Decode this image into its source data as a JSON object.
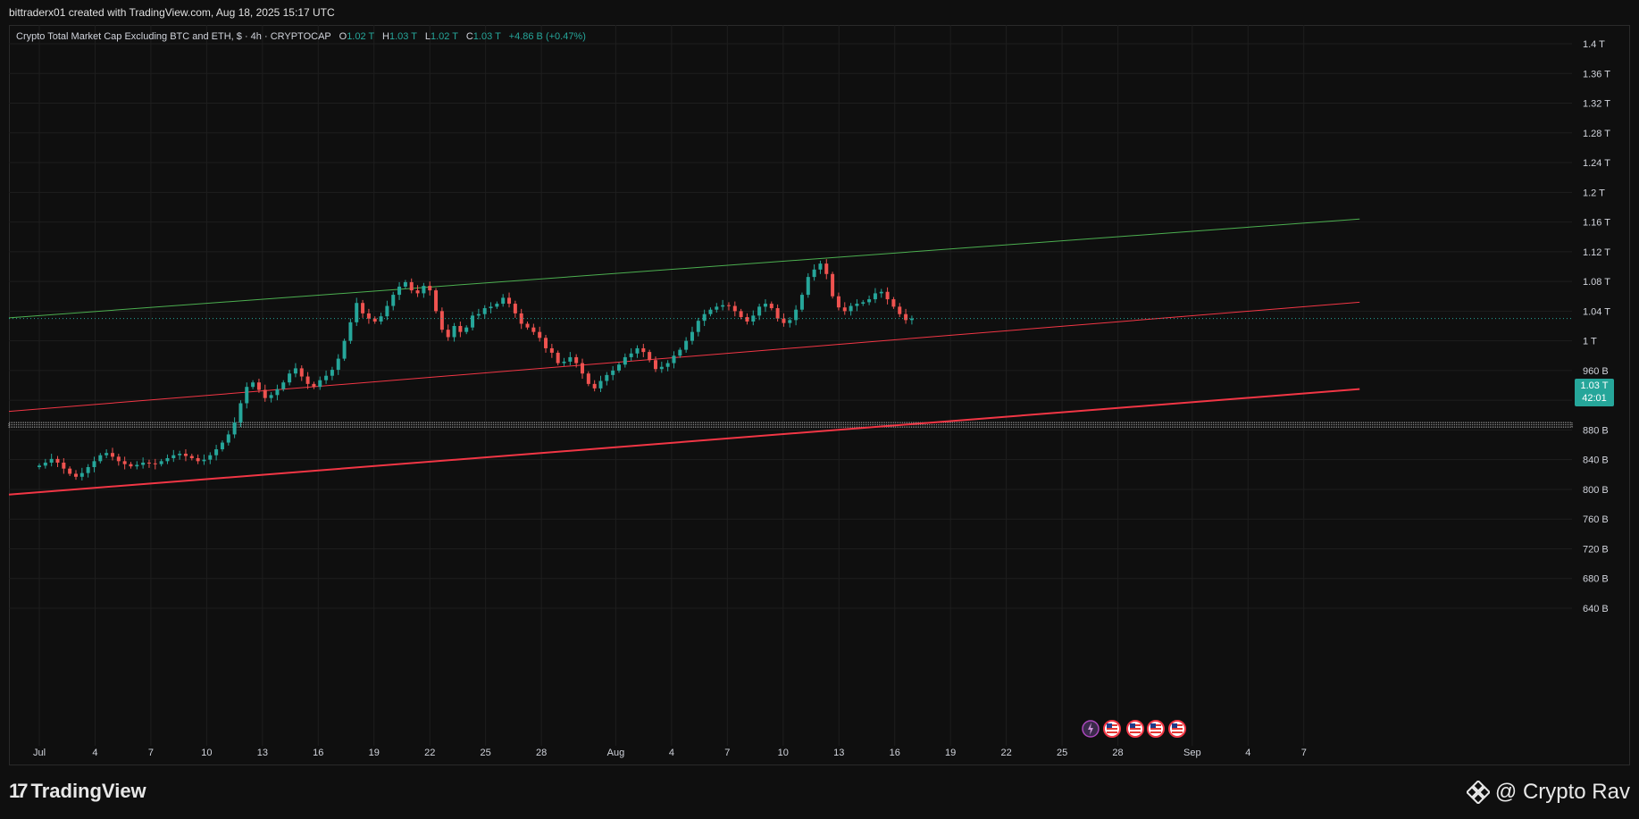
{
  "header": {
    "attribution": "bittraderx01 created with TradingView.com, Aug 18, 2025 15:17 UTC"
  },
  "legend": {
    "title": "Crypto Total Market Cap Excluding BTC and ETH, $ · 4h · CRYPTOCAP",
    "open_label": "O",
    "open": "1.02 T",
    "high_label": "H",
    "high": "1.03 T",
    "low_label": "L",
    "low": "1.02 T",
    "close_label": "C",
    "close": "1.03 T",
    "change": "+4.86 B (+0.47%)"
  },
  "price_tag": {
    "price": "1.03 T",
    "countdown": "42:01"
  },
  "footer": {
    "brand": "TradingView",
    "watermark": "@ Crypto Rav"
  },
  "colors": {
    "background": "#0f0f0f",
    "up": "#26a69a",
    "down": "#ef5350",
    "channel_upper": "#4caf50",
    "channel_lines": "#f23645",
    "grid": "#1e1e1e"
  },
  "event_icons": [
    "lightning-icon",
    "us-flag-icon",
    "us-flag-icon",
    "us-flag-icon",
    "us-flag-icon"
  ],
  "chart_data": {
    "type": "candlestick",
    "title": "Crypto Total Market Cap Excluding BTC and ETH, $ · 4h · CRYPTOCAP",
    "y_ticks": [
      "1.4 T",
      "1.36 T",
      "1.32 T",
      "1.28 T",
      "1.24 T",
      "1.2 T",
      "1.16 T",
      "1.12 T",
      "1.08 T",
      "1.04 T",
      "1 T",
      "960 B",
      "920 B",
      "880 B",
      "840 B",
      "800 B",
      "760 B",
      "720 B",
      "680 B",
      "640 B"
    ],
    "y_tick_values": [
      1400,
      1360,
      1320,
      1280,
      1240,
      1200,
      1160,
      1120,
      1080,
      1040,
      1000,
      960,
      920,
      880,
      840,
      800,
      760,
      720,
      680,
      640
    ],
    "y_unit": "B",
    "x_ticks": [
      "Jul",
      "4",
      "7",
      "10",
      "13",
      "16",
      "19",
      "22",
      "25",
      "28",
      "Aug",
      "4",
      "7",
      "10",
      "13",
      "16",
      "19",
      "22",
      "25",
      "28",
      "Sep",
      "4",
      "7"
    ],
    "x_tick_days": [
      1,
      4,
      7,
      10,
      13,
      16,
      19,
      22,
      25,
      28,
      32,
      35,
      38,
      41,
      44,
      47,
      50,
      53,
      56,
      59,
      63,
      66,
      69
    ],
    "x_unit": "days since Jul 1 2025",
    "horizontal_band": [
      884,
      890
    ],
    "current_price": 1030,
    "closes": [
      832,
      836,
      841,
      836,
      828,
      821,
      817,
      822,
      830,
      838,
      846,
      849,
      844,
      838,
      834,
      831,
      833,
      836,
      835,
      834,
      838,
      842,
      846,
      848,
      845,
      842,
      838,
      840,
      846,
      854,
      863,
      874,
      890,
      916,
      938,
      944,
      934,
      923,
      927,
      935,
      944,
      956,
      963,
      952,
      942,
      938,
      947,
      953,
      961,
      976,
      1000,
      1025,
      1051,
      1037,
      1030,
      1026,
      1033,
      1047,
      1062,
      1073,
      1079,
      1068,
      1064,
      1074,
      1068,
      1040,
      1015,
      1005,
      1020,
      1012,
      1018,
      1034,
      1036,
      1044,
      1046,
      1050,
      1058,
      1050,
      1037,
      1023,
      1018,
      1012,
      1004,
      990,
      984,
      970,
      972,
      978,
      970,
      956,
      942,
      936,
      946,
      954,
      960,
      968,
      978,
      983,
      990,
      985,
      974,
      962,
      965,
      970,
      980,
      988,
      1000,
      1012,
      1027,
      1036,
      1042,
      1046,
      1048,
      1047,
      1040,
      1032,
      1026,
      1034,
      1046,
      1050,
      1044,
      1030,
      1024,
      1028,
      1042,
      1062,
      1086,
      1096,
      1104,
      1090,
      1060,
      1045,
      1040,
      1047,
      1050,
      1052,
      1056,
      1064,
      1066,
      1056,
      1046,
      1036,
      1028,
      1030
    ]
  }
}
